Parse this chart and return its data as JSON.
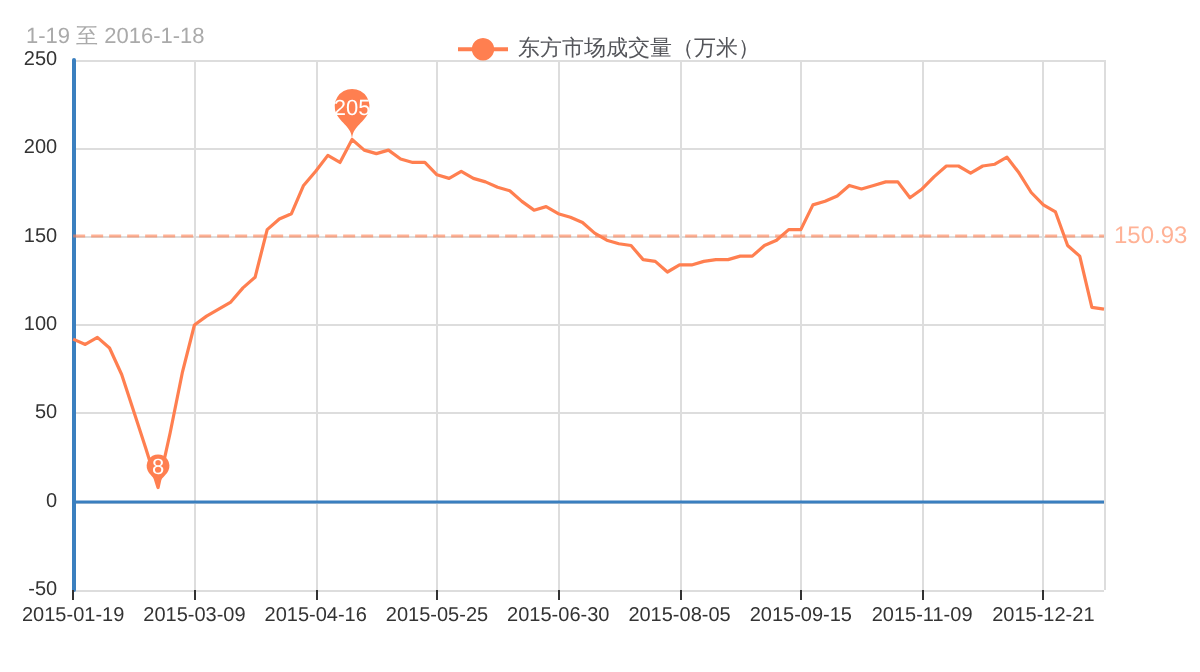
{
  "chart_data": {
    "type": "line",
    "title": "1-19 至 2016-1-18",
    "categories": [
      "2015-01-19",
      null,
      null,
      null,
      null,
      null,
      null,
      null,
      null,
      null,
      "2015-03-09",
      null,
      null,
      null,
      null,
      null,
      null,
      null,
      null,
      null,
      "2015-04-16",
      null,
      null,
      null,
      null,
      null,
      null,
      null,
      null,
      null,
      "2015-05-25",
      null,
      null,
      null,
      null,
      null,
      null,
      null,
      null,
      null,
      "2015-06-30",
      null,
      null,
      null,
      null,
      null,
      null,
      null,
      null,
      null,
      "2015-08-05",
      null,
      null,
      null,
      null,
      null,
      null,
      null,
      null,
      null,
      "2015-09-15",
      null,
      null,
      null,
      null,
      null,
      null,
      null,
      null,
      null,
      "2015-11-09",
      null,
      null,
      null,
      null,
      null,
      null,
      null,
      null,
      null,
      "2015-12-21",
      null,
      null,
      null,
      null,
      null
    ],
    "series": [
      {
        "name": "东方市场成交量（万米）",
        "color": "#ff7f50",
        "values": [
          92,
          89,
          93,
          87,
          72,
          51,
          30,
          8,
          39,
          73,
          100,
          105,
          109,
          113,
          121,
          127,
          154,
          160,
          163,
          179,
          187,
          196,
          192,
          205,
          199,
          197,
          199,
          194,
          192,
          192,
          185,
          183,
          187,
          183,
          181,
          178,
          176,
          170,
          165,
          167,
          163,
          161,
          158,
          152,
          148,
          146,
          145,
          137,
          136,
          130,
          134,
          134,
          136,
          137,
          137,
          139,
          139,
          145,
          148,
          154,
          154,
          168,
          170,
          173,
          179,
          177,
          179,
          181,
          181,
          172,
          177,
          184,
          190,
          190,
          186,
          190,
          191,
          195,
          186,
          175,
          168,
          164,
          145,
          139,
          110,
          109
        ]
      }
    ],
    "ylim": [
      -50,
      250
    ],
    "yticks": [
      -50,
      0,
      50,
      100,
      150,
      200,
      250
    ],
    "grid": true,
    "legend": "top",
    "ref_lines": [
      {
        "axis": "y",
        "value": 0,
        "color": "#3a7fbf",
        "line_style": "solid"
      },
      {
        "axis": "y",
        "value": 150.93,
        "label": "150.93",
        "color": "#ff7f50",
        "line_style": "dashed"
      }
    ],
    "annotations": [
      {
        "text": "205",
        "y": 205
      },
      {
        "text": "8",
        "y": 8
      }
    ]
  }
}
